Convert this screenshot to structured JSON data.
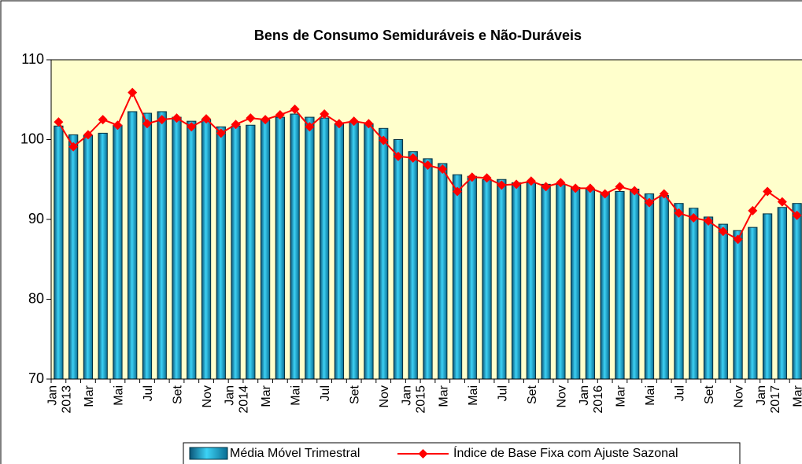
{
  "chart_data": {
    "type": "bar-line",
    "title": "Bens de Consumo Semiduráveis e Não-Duráveis",
    "categories": [
      "Jan 2013",
      null,
      "Mar",
      null,
      "Mai",
      null,
      "Jul",
      null,
      "Set",
      null,
      "Nov",
      null,
      "Jan 2014",
      null,
      "Mar",
      null,
      "Mai",
      null,
      "Jul",
      null,
      "Set",
      null,
      "Nov",
      null,
      "Jan 2015",
      null,
      "Mar",
      null,
      "Mai",
      null,
      "Jul",
      null,
      "Set",
      null,
      "Nov",
      null,
      "Jan 2016",
      null,
      "Mar",
      null,
      "Mai",
      null,
      "Jul",
      null,
      "Set",
      null,
      "Nov",
      null,
      "Jan 2017",
      null,
      "Mar"
    ],
    "series": [
      {
        "name": "Média Móvel Trimestral",
        "type": "bar",
        "color": "#1aa3cc",
        "values": [
          101.7,
          100.6,
          100.5,
          100.8,
          101.8,
          103.5,
          103.3,
          103.5,
          102.8,
          102.3,
          102.5,
          101.6,
          101.7,
          101.8,
          102.5,
          102.8,
          103.2,
          102.8,
          102.7,
          102.0,
          102.2,
          102.0,
          101.4,
          100.0,
          98.5,
          97.6,
          97.0,
          95.6,
          95.4,
          95.0,
          95.0,
          94.6,
          94.6,
          94.4,
          94.4,
          94.0,
          93.8,
          93.4,
          93.5,
          93.8,
          93.2,
          93.0,
          92.0,
          91.4,
          90.3,
          89.4,
          88.6,
          89.0,
          90.7,
          91.5,
          92.0
        ]
      },
      {
        "name": "Índice de Base Fixa com Ajuste Sazonal",
        "type": "line",
        "color": "#ff0000",
        "values": [
          102.2,
          99.1,
          100.6,
          102.5,
          101.8,
          105.9,
          102.0,
          102.5,
          102.7,
          101.6,
          102.6,
          100.8,
          101.9,
          102.7,
          102.5,
          103.1,
          103.8,
          101.6,
          103.2,
          102.0,
          102.3,
          102.0,
          99.9,
          97.9,
          97.7,
          96.8,
          96.3,
          93.5,
          95.3,
          95.2,
          94.3,
          94.4,
          94.8,
          94.1,
          94.6,
          93.9,
          93.9,
          93.2,
          94.1,
          93.6,
          92.1,
          93.2,
          90.8,
          90.2,
          89.8,
          88.5,
          87.5,
          91.1,
          93.5,
          92.2,
          90.5
        ]
      }
    ],
    "ylim": [
      70,
      110
    ],
    "yticks": [
      70,
      80,
      90,
      100,
      110
    ],
    "grid": false,
    "plot_background": "#ffffcc"
  }
}
